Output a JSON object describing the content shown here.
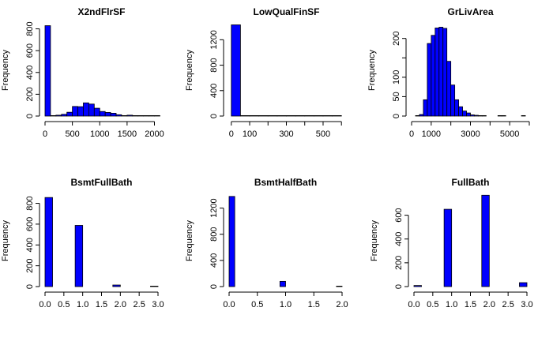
{
  "figure": {
    "background": "#ffffff",
    "bar_fill": "#0000ff",
    "bar_stroke": "#000000"
  },
  "chart_data": [
    {
      "type": "bar",
      "title": "X2ndFlrSF",
      "ylabel": "Frequency",
      "xlim": [
        0,
        2065
      ],
      "ylim": [
        0,
        840
      ],
      "xticks": [
        0,
        500,
        1000,
        1500,
        2000
      ],
      "xtick_labels": [
        "0",
        "500",
        "1000",
        "1500",
        "2000"
      ],
      "yticks": [
        0,
        200,
        400,
        600,
        800
      ],
      "ytick_labels": [
        "0",
        "200",
        "400",
        "600",
        "800"
      ],
      "bin_width": 100,
      "bins": [
        {
          "x0": 0,
          "x1": 100,
          "count": 829
        },
        {
          "x0": 100,
          "x1": 200,
          "count": 0
        },
        {
          "x0": 200,
          "x1": 300,
          "count": 8
        },
        {
          "x0": 300,
          "x1": 400,
          "count": 16
        },
        {
          "x0": 400,
          "x1": 500,
          "count": 35
        },
        {
          "x0": 500,
          "x1": 600,
          "count": 88
        },
        {
          "x0": 600,
          "x1": 700,
          "count": 86
        },
        {
          "x0": 700,
          "x1": 800,
          "count": 121
        },
        {
          "x0": 800,
          "x1": 900,
          "count": 110
        },
        {
          "x0": 900,
          "x1": 1000,
          "count": 72
        },
        {
          "x0": 1000,
          "x1": 1100,
          "count": 42
        },
        {
          "x0": 1100,
          "x1": 1200,
          "count": 33
        },
        {
          "x0": 1200,
          "x1": 1300,
          "count": 26
        },
        {
          "x0": 1300,
          "x1": 1400,
          "count": 12
        },
        {
          "x0": 1400,
          "x1": 1500,
          "count": 3
        },
        {
          "x0": 1500,
          "x1": 1600,
          "count": 8
        },
        {
          "x0": 1600,
          "x1": 1700,
          "count": 1
        },
        {
          "x0": 1700,
          "x1": 1800,
          "count": 1
        },
        {
          "x0": 1800,
          "x1": 1900,
          "count": 0
        },
        {
          "x0": 1900,
          "x1": 2000,
          "count": 0
        },
        {
          "x0": 2000,
          "x1": 2100,
          "count": 1
        }
      ]
    },
    {
      "type": "bar",
      "title": "LowQualFinSF",
      "ylabel": "Frequency",
      "xlim": [
        -12,
        612
      ],
      "ylim": [
        0,
        1440
      ],
      "xticks": [
        0,
        100,
        200,
        300,
        400,
        500,
        600
      ],
      "xtick_labels": [
        "0",
        "100",
        "",
        "300",
        "",
        "500",
        ""
      ],
      "yticks": [
        0,
        400,
        800,
        1200
      ],
      "ytick_labels": [
        "0",
        "400",
        "800",
        "1200"
      ],
      "bin_width": 50,
      "bins": [
        {
          "x0": 0,
          "x1": 50,
          "count": 1434
        },
        {
          "x0": 50,
          "x1": 100,
          "count": 1
        },
        {
          "x0": 100,
          "x1": 150,
          "count": 3
        },
        {
          "x0": 150,
          "x1": 200,
          "count": 2
        },
        {
          "x0": 200,
          "x1": 250,
          "count": 2
        },
        {
          "x0": 250,
          "x1": 300,
          "count": 0
        },
        {
          "x0": 300,
          "x1": 350,
          "count": 1
        },
        {
          "x0": 350,
          "x1": 400,
          "count": 3
        },
        {
          "x0": 400,
          "x1": 450,
          "count": 1
        },
        {
          "x0": 450,
          "x1": 500,
          "count": 1
        },
        {
          "x0": 500,
          "x1": 550,
          "count": 2
        },
        {
          "x0": 550,
          "x1": 600,
          "count": 1
        }
      ]
    },
    {
      "type": "bar",
      "title": "GrLivArea",
      "ylabel": "Frequency",
      "xlim": [
        0,
        6000
      ],
      "ylim": [
        0,
        236
      ],
      "xticks": [
        0,
        1000,
        2000,
        3000,
        4000,
        5000,
        6000
      ],
      "xtick_labels": [
        "0",
        "1000",
        "",
        "3000",
        "",
        "5000",
        ""
      ],
      "yticks": [
        0,
        50,
        100,
        150,
        200
      ],
      "ytick_labels": [
        "0",
        "50",
        "100",
        "",
        "200"
      ],
      "bin_width": 200,
      "bins": [
        {
          "x0": 200,
          "x1": 400,
          "count": 1
        },
        {
          "x0": 400,
          "x1": 600,
          "count": 4
        },
        {
          "x0": 600,
          "x1": 800,
          "count": 42
        },
        {
          "x0": 800,
          "x1": 1000,
          "count": 187
        },
        {
          "x0": 1000,
          "x1": 1200,
          "count": 208
        },
        {
          "x0": 1200,
          "x1": 1400,
          "count": 227
        },
        {
          "x0": 1400,
          "x1": 1600,
          "count": 229
        },
        {
          "x0": 1600,
          "x1": 1800,
          "count": 226
        },
        {
          "x0": 1800,
          "x1": 2000,
          "count": 141
        },
        {
          "x0": 2000,
          "x1": 2200,
          "count": 80
        },
        {
          "x0": 2200,
          "x1": 2400,
          "count": 42
        },
        {
          "x0": 2400,
          "x1": 2600,
          "count": 24
        },
        {
          "x0": 2600,
          "x1": 2800,
          "count": 13
        },
        {
          "x0": 2800,
          "x1": 3000,
          "count": 8
        },
        {
          "x0": 3000,
          "x1": 3200,
          "count": 3
        },
        {
          "x0": 3200,
          "x1": 3400,
          "count": 2
        },
        {
          "x0": 3400,
          "x1": 3600,
          "count": 1
        },
        {
          "x0": 3600,
          "x1": 3800,
          "count": 1
        },
        {
          "x0": 4400,
          "x1": 4600,
          "count": 1
        },
        {
          "x0": 4600,
          "x1": 4800,
          "count": 1
        },
        {
          "x0": 5600,
          "x1": 5800,
          "count": 1
        }
      ]
    },
    {
      "type": "bar",
      "title": "BsmtFullBath",
      "ylabel": "Frequency",
      "xlim": [
        0,
        3
      ],
      "ylim": [
        0,
        880
      ],
      "xticks": [
        0,
        0.5,
        1,
        1.5,
        2,
        2.5,
        3
      ],
      "xtick_labels": [
        "0.0",
        "0.5",
        "1.0",
        "1.5",
        "2.0",
        "2.5",
        "3.0"
      ],
      "yticks": [
        0,
        200,
        400,
        600,
        800
      ],
      "ytick_labels": [
        "0",
        "200",
        "400",
        "600",
        "800"
      ],
      "bin_width": 0.2,
      "bins": [
        {
          "x0": 0,
          "x1": 0.2,
          "count": 856
        },
        {
          "x0": 0.8,
          "x1": 1.0,
          "count": 588
        },
        {
          "x0": 1.8,
          "x1": 2.0,
          "count": 15
        },
        {
          "x0": 2.8,
          "x1": 3.0,
          "count": 1
        }
      ]
    },
    {
      "type": "bar",
      "title": "BsmtHalfBath",
      "ylabel": "Frequency",
      "xlim": [
        0,
        2
      ],
      "ylim": [
        0,
        1400
      ],
      "xticks": [
        0,
        0.5,
        1,
        1.5,
        2
      ],
      "xtick_labels": [
        "0.0",
        "0.5",
        "1.0",
        "1.5",
        "2.0"
      ],
      "yticks": [
        0,
        400,
        800,
        1200
      ],
      "ytick_labels": [
        "0",
        "400",
        "800",
        "1200"
      ],
      "bin_width": 0.1,
      "bins": [
        {
          "x0": 0,
          "x1": 0.1,
          "count": 1378
        },
        {
          "x0": 0.9,
          "x1": 1.0,
          "count": 80
        },
        {
          "x0": 1.9,
          "x1": 2.0,
          "count": 2
        }
      ]
    },
    {
      "type": "bar",
      "title": "FullBath",
      "ylabel": "Frequency",
      "xlim": [
        0,
        3
      ],
      "ylim": [
        0,
        770
      ],
      "xticks": [
        0,
        0.5,
        1,
        1.5,
        2,
        2.5,
        3
      ],
      "xtick_labels": [
        "0.0",
        "0.5",
        "1.0",
        "1.5",
        "2.0",
        "2.5",
        "3.0"
      ],
      "yticks": [
        0,
        200,
        400,
        600
      ],
      "ytick_labels": [
        "0",
        "200",
        "400",
        "600"
      ],
      "bin_width": 0.2,
      "bins": [
        {
          "x0": 0,
          "x1": 0.2,
          "count": 9
        },
        {
          "x0": 0.8,
          "x1": 1.0,
          "count": 650
        },
        {
          "x0": 1.8,
          "x1": 2.0,
          "count": 768
        },
        {
          "x0": 2.8,
          "x1": 3.0,
          "count": 33
        }
      ]
    }
  ]
}
